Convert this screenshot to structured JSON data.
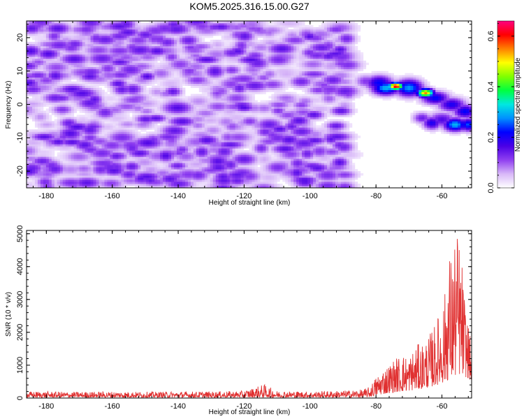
{
  "title": "KOM5.2025.316.15.00.G27",
  "chart_data": [
    {
      "type": "heatmap",
      "title": "KOM5.2025.316.15.00.G27",
      "xlabel": "Height of straight line (km)",
      "ylabel": "Frequency (Hz)",
      "xlim": [
        -186,
        -51
      ],
      "ylim": [
        -25,
        25
      ],
      "xticks": [
        -180,
        -160,
        -140,
        -120,
        -100,
        -80,
        -60
      ],
      "yticks": [
        -20,
        -10,
        0,
        10,
        20
      ],
      "colorbar": {
        "label": "Normalized spectral amplitude",
        "range": [
          0,
          0.66
        ],
        "ticks": [
          0,
          0.2,
          0.4,
          0.6
        ],
        "tick_labels": [
          "0.0",
          "0.2",
          "0.4",
          "0.6"
        ],
        "colors": [
          "#ffffff",
          "#d8b8f8",
          "#9040f0",
          "#4a00e6",
          "#0000ff",
          "#0090ff",
          "#00e8e0",
          "#00ff40",
          "#80ff00",
          "#ffff00",
          "#ff8000",
          "#ff0000",
          "#ff0080"
        ]
      },
      "noise_region": {
        "x": [
          -186,
          -88
        ],
        "y": [
          -25,
          25
        ],
        "level_range": [
          0.02,
          0.16
        ]
      },
      "features": [
        {
          "x": -83,
          "y": 7,
          "value": 0.12,
          "sx": 2.5,
          "sy": 1.4
        },
        {
          "x": -79,
          "y": 6.5,
          "value": 0.22,
          "sx": 3,
          "sy": 1.6
        },
        {
          "x": -74,
          "y": 5.5,
          "value": 0.64,
          "sx": 1.6,
          "sy": 0.8
        },
        {
          "x": -77,
          "y": 5,
          "value": 0.3,
          "sx": 3,
          "sy": 1.5
        },
        {
          "x": -70,
          "y": 5,
          "value": 0.28,
          "sx": 3,
          "sy": 1.8
        },
        {
          "x": -65,
          "y": 3.5,
          "value": 0.55,
          "sx": 1.8,
          "sy": 0.9
        },
        {
          "x": -62,
          "y": 2,
          "value": 0.22,
          "sx": 3,
          "sy": 1.4
        },
        {
          "x": -57,
          "y": 0,
          "value": 0.2,
          "sx": 3,
          "sy": 1.5
        },
        {
          "x": -53,
          "y": -2,
          "value": 0.22,
          "sx": 2.5,
          "sy": 1.5
        },
        {
          "x": -60,
          "y": -4.5,
          "value": 0.16,
          "sx": 3,
          "sy": 1.6
        },
        {
          "x": -56,
          "y": -6,
          "value": 0.3,
          "sx": 2.5,
          "sy": 1.4
        },
        {
          "x": -52,
          "y": -6,
          "value": 0.25,
          "sx": 2,
          "sy": 1.4
        },
        {
          "x": -63,
          "y": -5.5,
          "value": 0.2,
          "sx": 2,
          "sy": 1.4
        },
        {
          "x": -66,
          "y": -4,
          "value": 0.14,
          "sx": 2,
          "sy": 1.2
        }
      ]
    },
    {
      "type": "line",
      "title": "",
      "xlabel": "Height of straight line (km)",
      "ylabel": "SNR (10 * v/v)",
      "xlim": [
        -186,
        -51
      ],
      "ylim": [
        0,
        5100
      ],
      "xticks": [
        -180,
        -160,
        -140,
        -120,
        -100,
        -80,
        -60
      ],
      "yticks": [
        0,
        1000,
        2000,
        3000,
        4000,
        5000
      ],
      "series": [
        {
          "name": "SNR",
          "color": "#e03030",
          "x": [
            -186,
            -180,
            -170,
            -160,
            -150,
            -140,
            -130,
            -120,
            -114,
            -110,
            -100,
            -90,
            -84,
            -82,
            -80,
            -78,
            -76,
            -74,
            -72,
            -70,
            -68,
            -66,
            -64,
            -62,
            -60,
            -59,
            -58,
            -57,
            -56,
            -55,
            -54,
            -53,
            -52,
            -51
          ],
          "envelope": [
            200,
            200,
            190,
            200,
            190,
            200,
            200,
            220,
            420,
            220,
            200,
            230,
            260,
            340,
            650,
            900,
            1050,
            1250,
            1350,
            1300,
            1600,
            1700,
            1900,
            2300,
            2850,
            3300,
            4700,
            4250,
            5100,
            5100,
            4300,
            3000,
            2300,
            1500
          ],
          "floor": [
            20,
            20,
            20,
            20,
            20,
            20,
            20,
            20,
            20,
            20,
            20,
            20,
            20,
            30,
            80,
            120,
            150,
            180,
            200,
            220,
            250,
            280,
            320,
            380,
            450,
            500,
            550,
            600,
            650,
            700,
            700,
            650,
            600,
            500
          ]
        }
      ]
    }
  ]
}
